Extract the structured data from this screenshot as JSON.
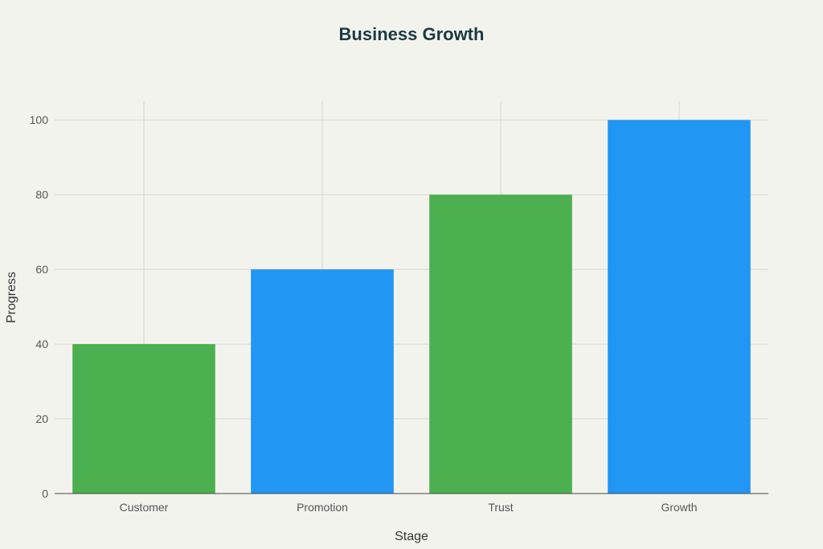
{
  "chart_data": {
    "type": "bar",
    "title": "Business Growth",
    "xlabel": "Stage",
    "ylabel": "Progress",
    "categories": [
      "Customer",
      "Promotion",
      "Trust",
      "Growth"
    ],
    "values": [
      40,
      60,
      80,
      100
    ],
    "bar_colors": [
      "#4caf50",
      "#2196f3",
      "#4caf50",
      "#2196f3"
    ],
    "ylim": [
      0,
      105
    ],
    "yticks": [
      0,
      20,
      40,
      60,
      80,
      100
    ],
    "grid": true,
    "legend": "none"
  },
  "colors": {
    "background": "#f3f3ee",
    "title": "#1b3a40",
    "green": "#4caf50",
    "blue": "#2196f3"
  }
}
